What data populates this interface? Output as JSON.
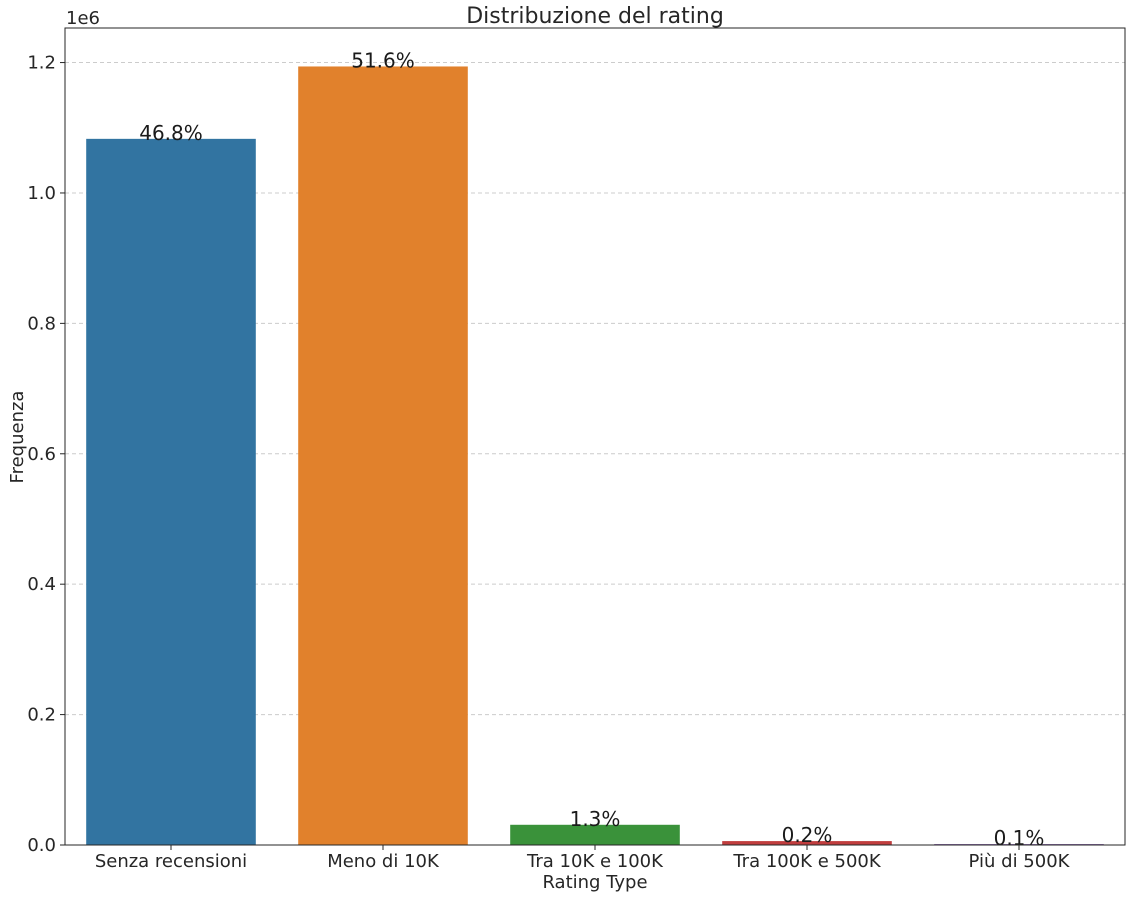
{
  "chart_data": {
    "type": "bar",
    "title": "Distribuzione del rating",
    "xlabel": "Rating Type",
    "ylabel": "Frequenza",
    "y_scale_label": "1e6",
    "y_multiplier": 1000000,
    "categories": [
      "Senza recensioni",
      "Meno di 10K",
      "Tra 10K e 100K",
      "Tra 100K e 500K",
      "Più di 500K"
    ],
    "values": [
      1083000,
      1194000,
      31000,
      6000,
      1500
    ],
    "data_labels": [
      "46.8%",
      "51.6%",
      "1.3%",
      "0.2%",
      "0.1%"
    ],
    "colors": [
      "#3274a1",
      "#e1812c",
      "#3a923a",
      "#c03d3e",
      "#9372b2"
    ],
    "ylim": [
      0,
      1253000
    ],
    "yticks": [
      0,
      200000,
      400000,
      600000,
      800000,
      1000000,
      1200000
    ],
    "ytick_labels": [
      "0.0",
      "0.2",
      "0.4",
      "0.6",
      "0.8",
      "1.0",
      "1.2"
    ],
    "grid": true
  }
}
